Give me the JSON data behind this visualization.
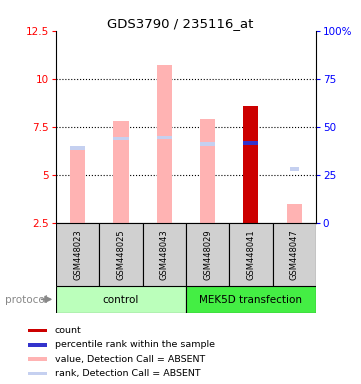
{
  "title": "GDS3790 / 235116_at",
  "samples": [
    "GSM448023",
    "GSM448025",
    "GSM448043",
    "GSM448029",
    "GSM448041",
    "GSM448047"
  ],
  "ylim_left": [
    2.5,
    12.5
  ],
  "ylim_right": [
    0,
    100
  ],
  "yticks_left": [
    2.5,
    5.0,
    7.5,
    10.0,
    12.5
  ],
  "ytick_labels_left": [
    "2.5",
    "5",
    "7.5",
    "10",
    "12.5"
  ],
  "ytick_labels_right": [
    "0",
    "25",
    "50",
    "75",
    "100%"
  ],
  "bar_bottom": 2.5,
  "value_bars": [
    6.5,
    7.8,
    10.7,
    7.9,
    8.6,
    3.5
  ],
  "rank_positions": [
    6.4,
    6.9,
    6.95,
    6.6,
    6.65,
    5.3
  ],
  "value_color_absent": "#ffb3b3",
  "rank_color_absent": "#c5d0f0",
  "count_color": "#cc0000",
  "percentile_color": "#3333cc",
  "is_present": [
    false,
    false,
    false,
    false,
    true,
    false
  ],
  "rank_absent_small": [
    false,
    false,
    false,
    false,
    false,
    true
  ],
  "bar_width": 0.35,
  "gray_box_color": "#d0d0d0",
  "control_color": "#bbffbb",
  "mek_color": "#44ee44",
  "legend_items": [
    {
      "color": "#cc0000",
      "label": "count"
    },
    {
      "color": "#3333cc",
      "label": "percentile rank within the sample"
    },
    {
      "color": "#ffb3b3",
      "label": "value, Detection Call = ABSENT"
    },
    {
      "color": "#c5d0f0",
      "label": "rank, Detection Call = ABSENT"
    }
  ]
}
